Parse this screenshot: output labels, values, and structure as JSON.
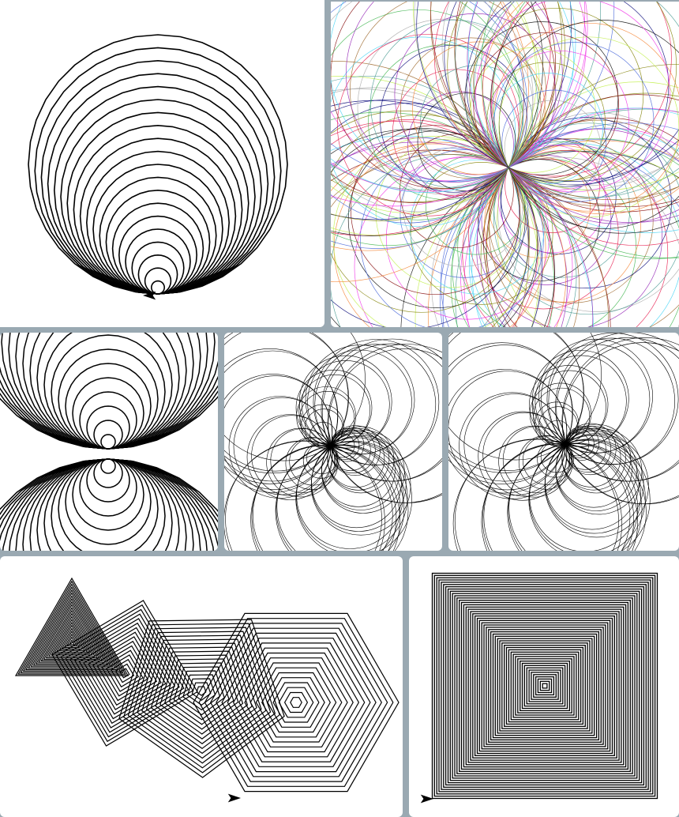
{
  "title": "",
  "colors": {
    "background": "#9aa9b2",
    "panel": "#ffffff",
    "stroke": "#000000",
    "palette": [
      "#e6194b",
      "#3cb44b",
      "#4363d8",
      "#f58231",
      "#911eb4",
      "#42d4f4",
      "#f032e6",
      "#469990",
      "#9a6324",
      "#800000",
      "#808000",
      "#000075",
      "#a9a9a9",
      "#bfef45",
      "#000000"
    ]
  },
  "panels": [
    {
      "id": "circles-stacked",
      "icon": "turtle-arrow-icon"
    },
    {
      "id": "colored-flower",
      "icon": ""
    },
    {
      "id": "mirrored-circles",
      "icon": ""
    },
    {
      "id": "spirograph-a",
      "icon": ""
    },
    {
      "id": "spirograph-b",
      "icon": ""
    },
    {
      "id": "polygon-spirals",
      "icon": "turtle-arrow-icon"
    },
    {
      "id": "square-spiral",
      "icon": "turtle-arrow-icon"
    }
  ]
}
